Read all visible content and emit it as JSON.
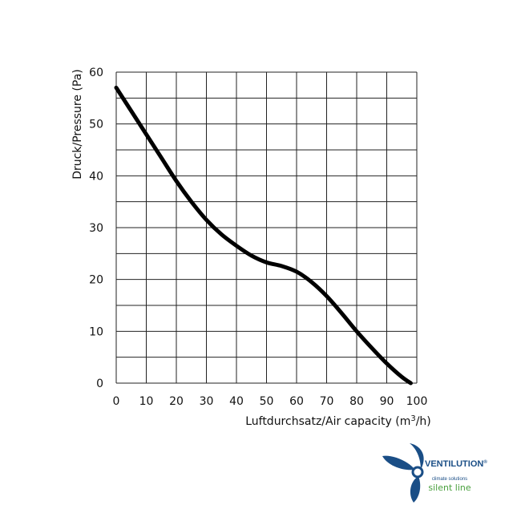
{
  "chart_data": {
    "type": "line",
    "title": "",
    "xlabel": "Luftdurchsatz/Air capacity (m³/h)",
    "xlabel_parts": {
      "before": "Luftdurchsatz/Air capacity (m",
      "sup": "3",
      "after": "/h)"
    },
    "ylabel": "Druck/Pressure (Pa)",
    "xlim": [
      0,
      100
    ],
    "ylim": [
      0,
      60
    ],
    "x_ticks": [
      0,
      10,
      20,
      30,
      40,
      50,
      60,
      70,
      80,
      90,
      100
    ],
    "y_ticks": [
      0,
      10,
      20,
      30,
      40,
      50,
      60
    ],
    "grid": true,
    "series": [
      {
        "x": [
          0,
          5,
          10,
          15,
          20,
          25,
          30,
          35,
          40,
          45,
          50,
          55,
          60,
          65,
          70,
          75,
          80,
          85,
          90,
          95,
          98
        ],
        "y": [
          57,
          52.5,
          48,
          43.5,
          39,
          35,
          31.5,
          28.7,
          26.5,
          24.6,
          23.3,
          22.6,
          21.5,
          19.5,
          16.8,
          13.5,
          10,
          6.8,
          3.8,
          1.2,
          0
        ]
      }
    ]
  },
  "logo": {
    "name": "VENTILUTION",
    "trademark": "®",
    "tagline": "climate solutions",
    "product_line": "silent line",
    "colors": {
      "blue": "#1a4e86",
      "green": "#4aa03f"
    }
  }
}
